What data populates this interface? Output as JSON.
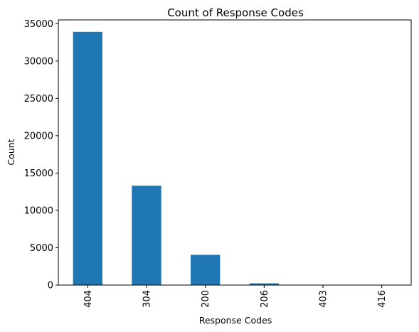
{
  "chart_data": {
    "type": "bar",
    "title": "Count of Response Codes",
    "xlabel": "Response Codes",
    "ylabel": "Count",
    "categories": [
      "404",
      "304",
      "200",
      "206",
      "403",
      "416"
    ],
    "values": [
      33900,
      13300,
      4050,
      230,
      20,
      10
    ],
    "ylim": [
      0,
      35500
    ],
    "yticks": [
      0,
      5000,
      10000,
      15000,
      20000,
      25000,
      30000,
      35000
    ],
    "grid": false,
    "bar_color": "#1f77b4",
    "x_tick_rotation": "vertical"
  }
}
